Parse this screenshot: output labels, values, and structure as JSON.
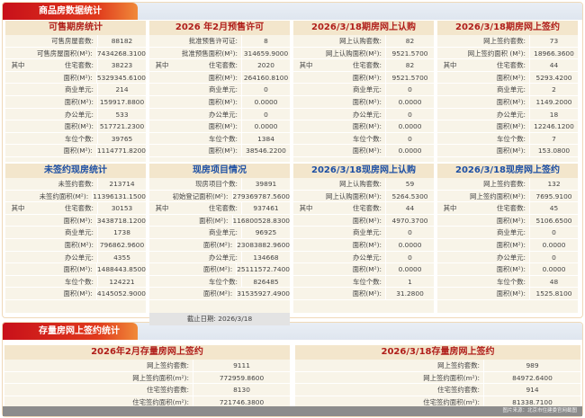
{
  "section1": {
    "title": "商品房数据统计"
  },
  "section2": {
    "title": "存量房网上签约统计"
  },
  "colors": {
    "red_title": "#b01e1a",
    "blue_title": "#1d4fa3",
    "tab": "#c8101a"
  },
  "top_panels": [
    {
      "title": "可售期房统计",
      "color": "red",
      "rows": [
        {
          "pre": "",
          "label": "可售房屋套数:",
          "value": "88182"
        },
        {
          "pre": "",
          "label": "可售房屋面积(M²):",
          "value": "7434268.3100"
        },
        {
          "pre": "其中",
          "label": "住宅套数:",
          "value": "38223"
        },
        {
          "pre": "",
          "label": "面积(M²):",
          "value": "5329345.6100"
        },
        {
          "pre": "",
          "label": "商业单元:",
          "value": "214"
        },
        {
          "pre": "",
          "label": "面积(M²):",
          "value": "159917.8800"
        },
        {
          "pre": "",
          "label": "办公单元:",
          "value": "533"
        },
        {
          "pre": "",
          "label": "面积(M²):",
          "value": "517721.2300"
        },
        {
          "pre": "",
          "label": "车位个数:",
          "value": "39765"
        },
        {
          "pre": "",
          "label": "面积(M²):",
          "value": "1114771.8200"
        }
      ]
    },
    {
      "title": "2026 年2月预售许可",
      "color": "red",
      "rows": [
        {
          "pre": "",
          "label": "批准预售许可证:",
          "value": "8"
        },
        {
          "pre": "",
          "label": "批准预售面积(M²):",
          "value": "314659.9000"
        },
        {
          "pre": "其中",
          "label": "住宅套数:",
          "value": "2020"
        },
        {
          "pre": "",
          "label": "面积(M²):",
          "value": "264160.8100"
        },
        {
          "pre": "",
          "label": "商业单元:",
          "value": "0"
        },
        {
          "pre": "",
          "label": "面积(M²):",
          "value": "0.0000"
        },
        {
          "pre": "",
          "label": "办公单元:",
          "value": "0"
        },
        {
          "pre": "",
          "label": "面积(M²):",
          "value": "0.0000"
        },
        {
          "pre": "",
          "label": "车位个数:",
          "value": "1384"
        },
        {
          "pre": "",
          "label": "面积(M²):",
          "value": "38546.2200"
        }
      ]
    },
    {
      "title": "2026/3/18期房网上认购",
      "color": "red",
      "rows": [
        {
          "pre": "",
          "label": "网上认购套数:",
          "value": "82"
        },
        {
          "pre": "",
          "label": "网上认购面积(M²):",
          "value": "9521.5700"
        },
        {
          "pre": "其中",
          "label": "住宅套数:",
          "value": "82"
        },
        {
          "pre": "",
          "label": "面积(M²):",
          "value": "9521.5700"
        },
        {
          "pre": "",
          "label": "商业单元:",
          "value": "0"
        },
        {
          "pre": "",
          "label": "面积(M²):",
          "value": "0.0000"
        },
        {
          "pre": "",
          "label": "办公单元:",
          "value": "0"
        },
        {
          "pre": "",
          "label": "面积(M²):",
          "value": "0.0000"
        },
        {
          "pre": "",
          "label": "车位个数:",
          "value": "0"
        },
        {
          "pre": "",
          "label": "面积(M²):",
          "value": "0.0000"
        }
      ]
    },
    {
      "title": "2026/3/18期房网上签约",
      "color": "red",
      "rows": [
        {
          "pre": "",
          "label": "网上签约套数:",
          "value": "73"
        },
        {
          "pre": "",
          "label": "网上签约面积 (M²):",
          "value": "18966.3600"
        },
        {
          "pre": "其中",
          "label": "住宅套数:",
          "value": "44"
        },
        {
          "pre": "",
          "label": "面积(M²):",
          "value": "5293.4200"
        },
        {
          "pre": "",
          "label": "商业单元:",
          "value": "2"
        },
        {
          "pre": "",
          "label": "面积(M²):",
          "value": "1149.2000"
        },
        {
          "pre": "",
          "label": "办公单元:",
          "value": "18"
        },
        {
          "pre": "",
          "label": "面积(M²):",
          "value": "12246.1200"
        },
        {
          "pre": "",
          "label": "车位个数:",
          "value": "7"
        },
        {
          "pre": "",
          "label": "面积(M²):",
          "value": "153.0800"
        }
      ]
    }
  ],
  "mid_panels": [
    {
      "title": "未签约现房统计",
      "color": "blue",
      "rows": [
        {
          "pre": "",
          "label": "未签约套数:",
          "value": "213714"
        },
        {
          "pre": "",
          "label": "未签约面积(M²):",
          "value": "11396131.1500"
        },
        {
          "pre": "其中",
          "label": "住宅套数:",
          "value": "30153"
        },
        {
          "pre": "",
          "label": "面积(M²):",
          "value": "3438718.1200"
        },
        {
          "pre": "",
          "label": "商业单元:",
          "value": "1738"
        },
        {
          "pre": "",
          "label": "面积(M²):",
          "value": "796862.9600"
        },
        {
          "pre": "",
          "label": "办公单元:",
          "value": "4355"
        },
        {
          "pre": "",
          "label": "面积(M²):",
          "value": "1488443.8500"
        },
        {
          "pre": "",
          "label": "车位个数:",
          "value": "124221"
        },
        {
          "pre": "",
          "label": "面积(M²):",
          "value": "4145052.9000"
        }
      ]
    },
    {
      "title": "现房项目情况",
      "color": "blue",
      "date": "截止日期:  2026/3/18",
      "rows": [
        {
          "pre": "",
          "label": "现房项目个数:",
          "value": "39891"
        },
        {
          "pre": "",
          "label": "初始登记面积(M²):",
          "value": "279369787.5600"
        },
        {
          "pre": "其中",
          "label": "住宅套数:",
          "value": "937461"
        },
        {
          "pre": "",
          "label": "面积(M²):",
          "value": "116800528.8300"
        },
        {
          "pre": "",
          "label": "商业单元:",
          "value": "96925"
        },
        {
          "pre": "",
          "label": "面积(M²):",
          "value": "23083882.9600"
        },
        {
          "pre": "",
          "label": "办公单元:",
          "value": "134668"
        },
        {
          "pre": "",
          "label": "面积(M²):",
          "value": "25111572.7400"
        },
        {
          "pre": "",
          "label": "车位个数:",
          "value": "826485"
        },
        {
          "pre": "",
          "label": "面积(M²):",
          "value": "31535927.4900"
        }
      ]
    },
    {
      "title": "2026/3/18现房网上认购",
      "color": "blue",
      "rows": [
        {
          "pre": "",
          "label": "网上认购套数:",
          "value": "59"
        },
        {
          "pre": "",
          "label": "网上认购面积(M²):",
          "value": "5264.5300"
        },
        {
          "pre": "其中",
          "label": "住宅套数:",
          "value": "44"
        },
        {
          "pre": "",
          "label": "面积(M²):",
          "value": "4970.3700"
        },
        {
          "pre": "",
          "label": "商业单元:",
          "value": "0"
        },
        {
          "pre": "",
          "label": "面积(M²):",
          "value": "0.0000"
        },
        {
          "pre": "",
          "label": "办公单元:",
          "value": "0"
        },
        {
          "pre": "",
          "label": "面积(M²):",
          "value": "0.0000"
        },
        {
          "pre": "",
          "label": "车位个数:",
          "value": "1"
        },
        {
          "pre": "",
          "label": "面积(M²):",
          "value": "31.2800"
        }
      ]
    },
    {
      "title": "2026/3/18现房网上签约",
      "color": "blue",
      "rows": [
        {
          "pre": "",
          "label": "网上签约套数:",
          "value": "132"
        },
        {
          "pre": "",
          "label": "网上签约面积(M²):",
          "value": "7695.9100"
        },
        {
          "pre": "其中",
          "label": "住宅套数:",
          "value": "45"
        },
        {
          "pre": "",
          "label": "面积(M²):",
          "value": "5106.6500"
        },
        {
          "pre": "",
          "label": "商业单元:",
          "value": "0"
        },
        {
          "pre": "",
          "label": "面积(M²):",
          "value": "0.0000"
        },
        {
          "pre": "",
          "label": "办公单元:",
          "value": "0"
        },
        {
          "pre": "",
          "label": "面积(M²):",
          "value": "0.0000"
        },
        {
          "pre": "",
          "label": "车位个数:",
          "value": "48"
        },
        {
          "pre": "",
          "label": "面积(M²):",
          "value": "1525.8100"
        }
      ]
    }
  ],
  "stock_panels": [
    {
      "title": "2026年2月存量房网上签约",
      "color": "red",
      "rows": [
        {
          "pre": "",
          "label": "网上签约套数:",
          "value": "9111"
        },
        {
          "pre": "",
          "label": "网上签约面积(m²):",
          "value": "772959.8600"
        },
        {
          "pre": "",
          "label": "住宅签约套数:",
          "value": "8130"
        },
        {
          "pre": "",
          "label": "住宅签约面积(m²):",
          "value": "721746.3800"
        }
      ]
    },
    {
      "title": "2026/3/18存量房网上签约",
      "color": "red",
      "rows": [
        {
          "pre": "",
          "label": "网上签约套数:",
          "value": "989"
        },
        {
          "pre": "",
          "label": "网上签约面积(m²):",
          "value": "84972.6400"
        },
        {
          "pre": "",
          "label": "住宅签约套数:",
          "value": "914"
        },
        {
          "pre": "",
          "label": "住宅签约面积(m²):",
          "value": "81338.7100"
        }
      ]
    }
  ],
  "footer": {
    "source": "图片来源：北京市住建委官网截图"
  }
}
